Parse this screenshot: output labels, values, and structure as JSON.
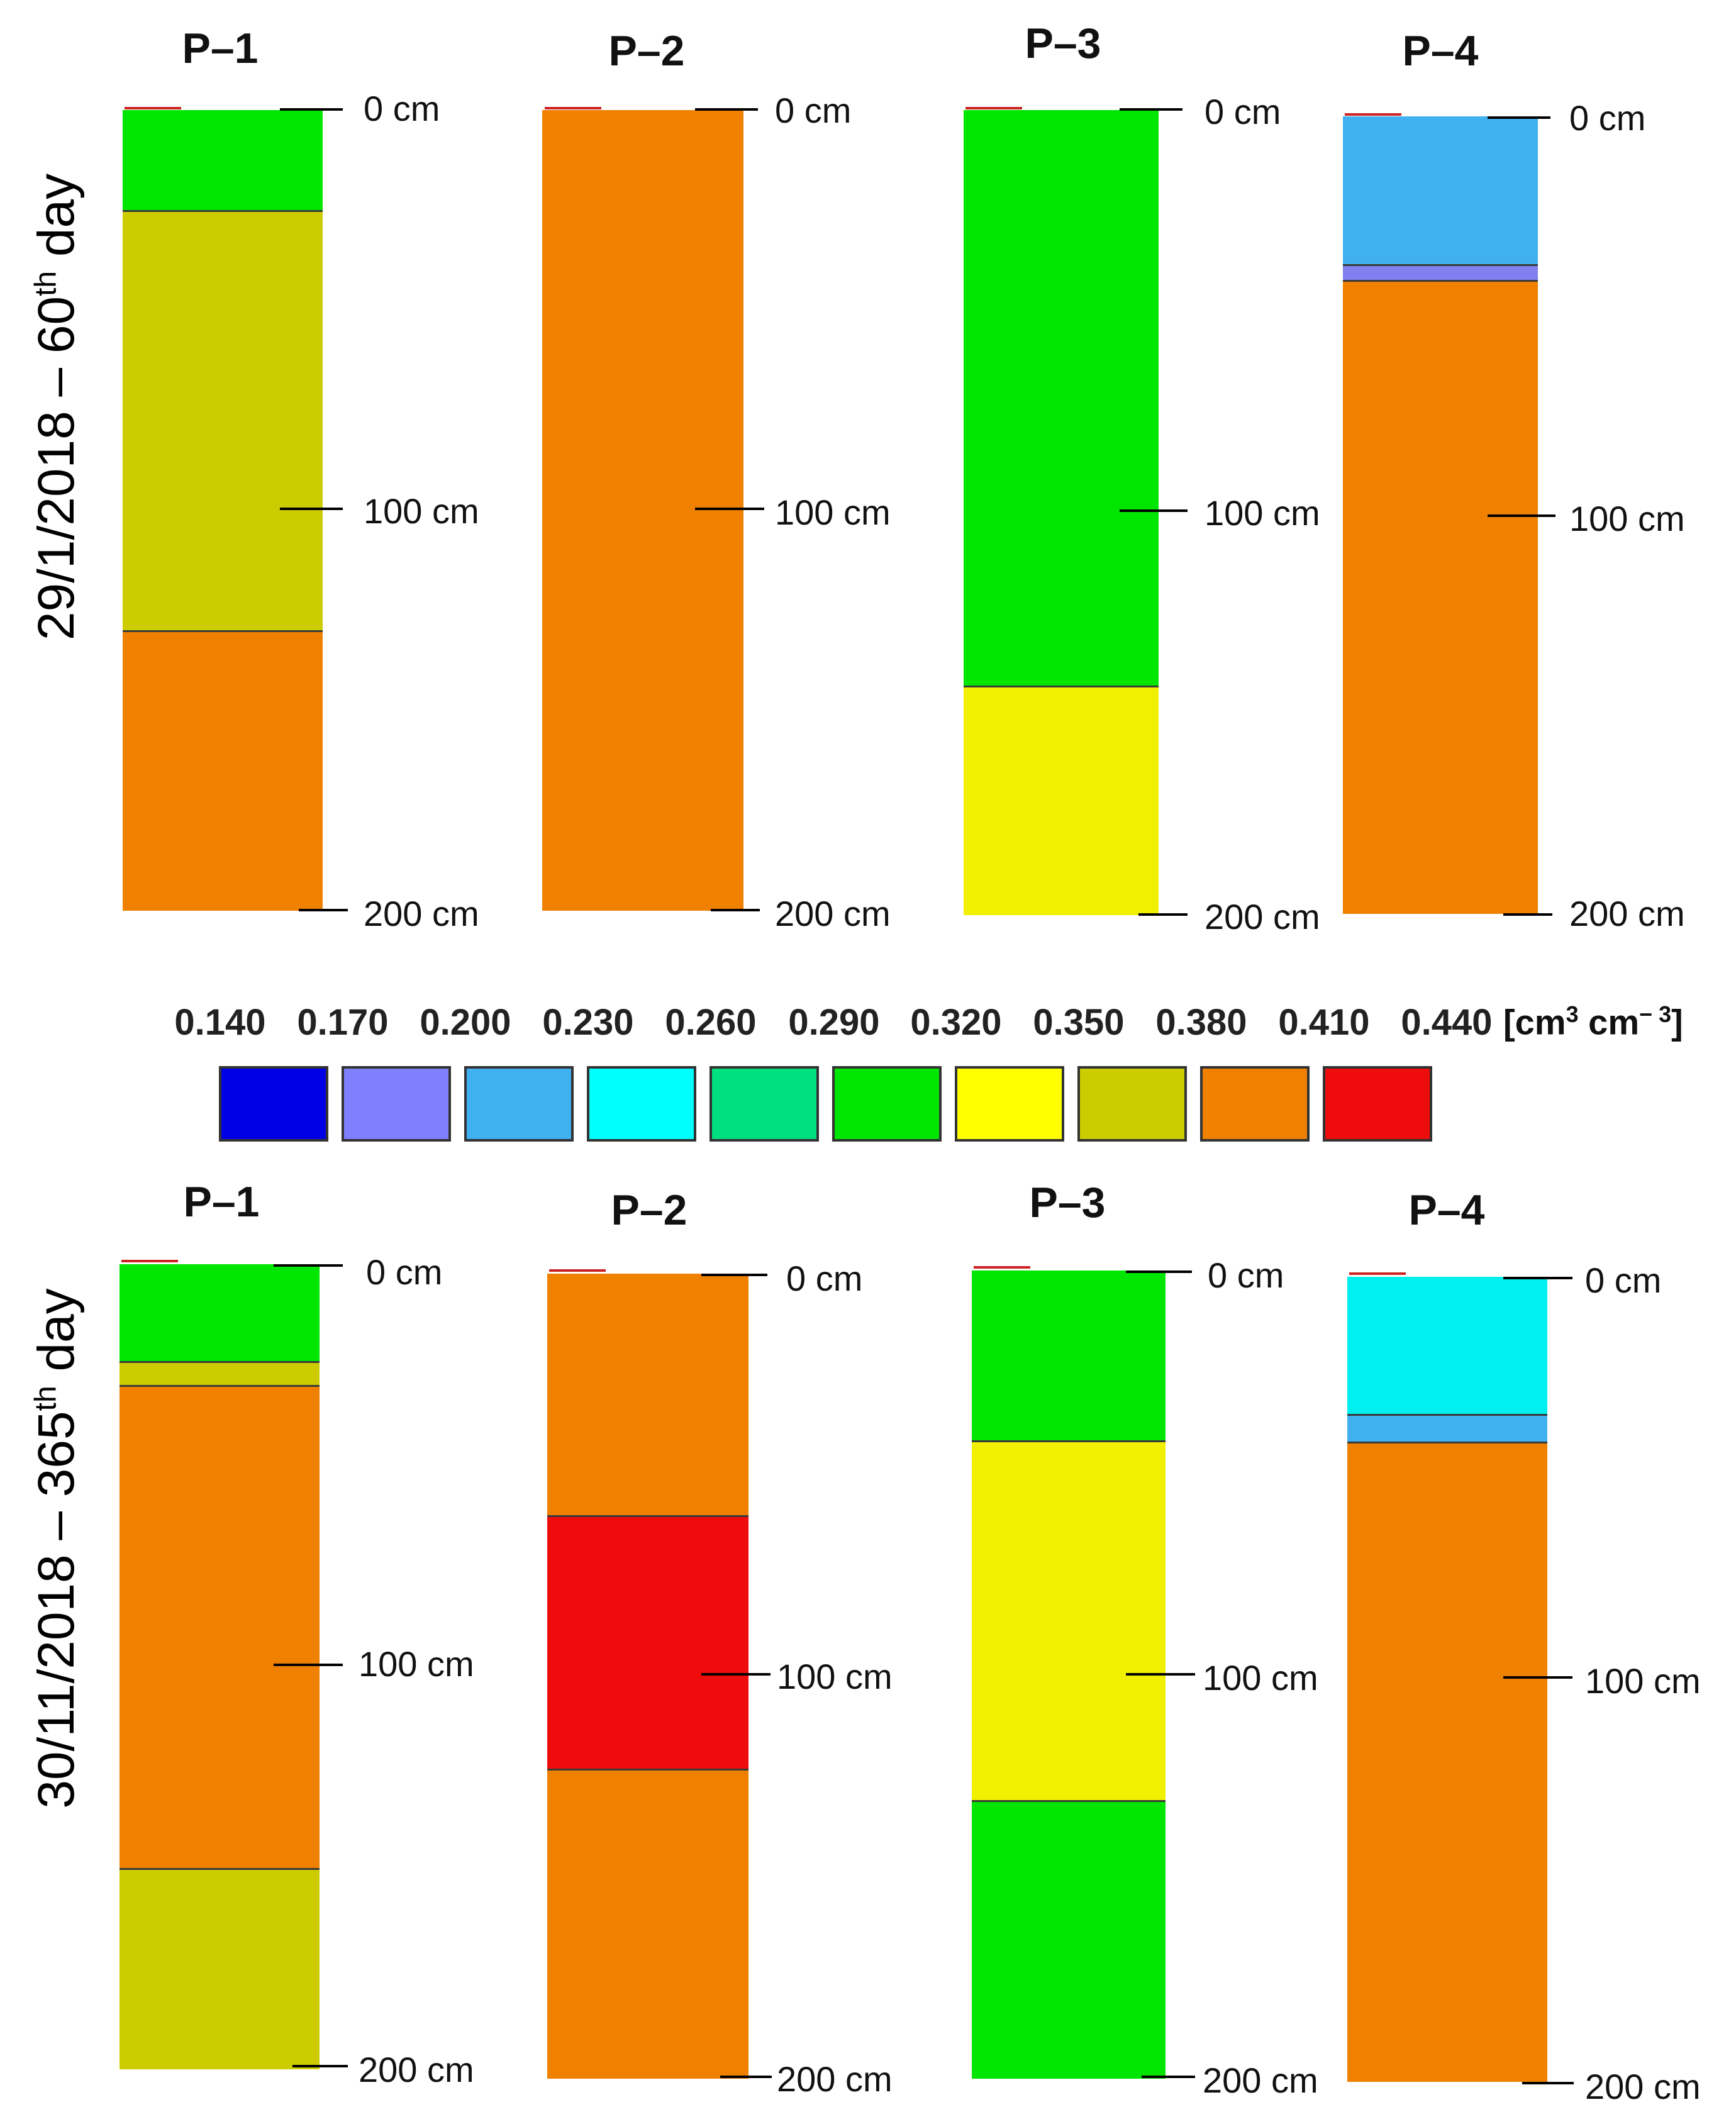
{
  "rows": [
    {
      "label": "29/1/2018 – 60",
      "label_sup": "th",
      "label_tail": " day",
      "profiles": [
        {
          "name": "P–1",
          "depth_labels": [
            "0 cm",
            "100 cm",
            "200 cm"
          ],
          "layers": [
            {
              "from": 0,
              "to": 25,
              "color": "#00e600"
            },
            {
              "from": 25,
              "to": 130,
              "color": "#cccc00"
            },
            {
              "from": 130,
              "to": 200,
              "color": "#f08000"
            }
          ]
        },
        {
          "name": "P–2",
          "depth_labels": [
            "0 cm",
            "100 cm",
            "200 cm"
          ],
          "layers": [
            {
              "from": 0,
              "to": 200,
              "color": "#f08000"
            }
          ]
        },
        {
          "name": "P–3",
          "depth_labels": [
            "0 cm",
            "100 cm",
            "200 cm"
          ],
          "layers": [
            {
              "from": 0,
              "to": 143,
              "color": "#00e600"
            },
            {
              "from": 143,
              "to": 200,
              "color": "#f0f000"
            }
          ]
        },
        {
          "name": "P–4",
          "depth_labels": [
            "0 cm",
            "100 cm",
            "200 cm"
          ],
          "layers": [
            {
              "from": 0,
              "to": 37,
              "color": "#40b0f0"
            },
            {
              "from": 37,
              "to": 41,
              "color": "#8080f0"
            },
            {
              "from": 41,
              "to": 200,
              "color": "#f08000"
            }
          ]
        }
      ]
    },
    {
      "label": "30/11/2018 – 365",
      "label_sup": "th",
      "label_tail": " day",
      "profiles": [
        {
          "name": "P–1",
          "depth_labels": [
            "0 cm",
            "100 cm",
            "200 cm"
          ],
          "layers": [
            {
              "from": 0,
              "to": 24,
              "color": "#00e600"
            },
            {
              "from": 24,
              "to": 30,
              "color": "#cccc00"
            },
            {
              "from": 30,
              "to": 150,
              "color": "#f08000"
            },
            {
              "from": 150,
              "to": 200,
              "color": "#cccc00"
            }
          ]
        },
        {
          "name": "P–2",
          "depth_labels": [
            "0 cm",
            "100 cm",
            "200 cm"
          ],
          "layers": [
            {
              "from": 0,
              "to": 60,
              "color": "#f08000"
            },
            {
              "from": 60,
              "to": 123,
              "color": "#ee0c0c"
            },
            {
              "from": 123,
              "to": 200,
              "color": "#f08000"
            }
          ]
        },
        {
          "name": "P–3",
          "depth_labels": [
            "0 cm",
            "100 cm",
            "200 cm"
          ],
          "layers": [
            {
              "from": 0,
              "to": 42,
              "color": "#00e600"
            },
            {
              "from": 42,
              "to": 131,
              "color": "#f0f000"
            },
            {
              "from": 131,
              "to": 200,
              "color": "#00e600"
            }
          ]
        },
        {
          "name": "P–4",
          "depth_labels": [
            "0 cm",
            "100 cm",
            "200 cm"
          ],
          "layers": [
            {
              "from": 0,
              "to": 34,
              "color": "#00f0f0"
            },
            {
              "from": 34,
              "to": 41,
              "color": "#40b0f0"
            },
            {
              "from": 41,
              "to": 200,
              "color": "#f08000"
            }
          ]
        }
      ]
    }
  ],
  "legend": {
    "values": [
      "0.140",
      "0.170",
      "0.200",
      "0.230",
      "0.260",
      "0.290",
      "0.320",
      "0.350",
      "0.380",
      "0.410",
      "0.440"
    ],
    "unit_main": "[cm",
    "unit_sup1": "3",
    "unit_mid": " cm",
    "unit_sup2": "− 3",
    "unit_end": "]",
    "colors": [
      "#0000e6",
      "#8080ff",
      "#40b0f0",
      "#00ffff",
      "#00e080",
      "#00e600",
      "#ffff00",
      "#cccc00",
      "#f08000",
      "#ee0c0c"
    ]
  }
}
